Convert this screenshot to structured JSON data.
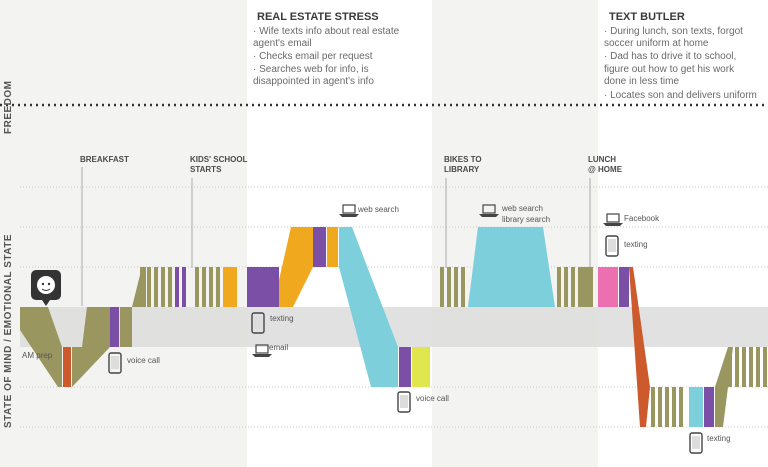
{
  "axis": {
    "freedom_label": "FREEDOM",
    "state_label": "STATE OF MIND / EMOTIONAL STATE"
  },
  "panels": [
    {
      "title": "REAL ESTATE STRESS",
      "lines": [
        "· Wife texts info about real estate",
        "  agent's email",
        "· Checks email per request",
        "· Searches web for info, is",
        "  disappointed in agent's info"
      ]
    },
    {
      "title": "TEXT BUTLER",
      "lines": [
        "· During lunch, son texts, forgot",
        "  soccer uniform at home",
        "· Dad has to drive it to school,",
        "  figure out how to get his work",
        "  done in less time",
        "· Locates son and delivers uniform"
      ]
    }
  ],
  "events": [
    {
      "id": "breakfast",
      "lines": [
        "BREAKFAST"
      ]
    },
    {
      "id": "school",
      "lines": [
        "KIDS' SCHOOL",
        "STARTS"
      ]
    },
    {
      "id": "bikes",
      "lines": [
        "BIKES TO",
        "LIBRARY"
      ]
    },
    {
      "id": "lunch",
      "lines": [
        "LUNCH",
        "@ HOME"
      ]
    }
  ],
  "icon_labels": {
    "am_prep": "AM prep",
    "voice_call_1": "voice call",
    "texting_1": "texting",
    "email": "email",
    "web_search_1": "web search",
    "voice_call_2": "voice call",
    "web_search_2a": "web search",
    "web_search_2b": "library search",
    "facebook": "Facebook",
    "texting_2": "texting",
    "texting_3": "texting"
  },
  "colors": {
    "olive": "#9a9660",
    "orange_red": "#cc5a2c",
    "purple": "#7b4fa6",
    "amber": "#f0a81e",
    "cyan": "#7ccfdb",
    "lime": "#dfe64e",
    "pink": "#ec6fb0",
    "band": "#dcdcdc",
    "panel": "#ffffff"
  }
}
